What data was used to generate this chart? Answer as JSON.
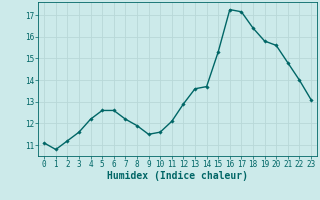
{
  "xlabel": "Humidex (Indice chaleur)",
  "ylabel": "",
  "x": [
    0,
    1,
    2,
    3,
    4,
    5,
    6,
    7,
    8,
    9,
    10,
    11,
    12,
    13,
    14,
    15,
    16,
    17,
    18,
    19,
    20,
    21,
    22,
    23
  ],
  "y": [
    11.1,
    10.8,
    11.2,
    11.6,
    12.2,
    12.6,
    12.6,
    12.2,
    11.9,
    11.5,
    11.6,
    12.1,
    12.9,
    13.6,
    13.7,
    15.3,
    17.25,
    17.15,
    16.4,
    15.8,
    15.6,
    14.8,
    14.0,
    13.1
  ],
  "line_color": "#006666",
  "marker": "D",
  "marker_size": 1.8,
  "bg_color": "#cceaea",
  "grid_color": "#b8d8d8",
  "tick_color": "#006666",
  "label_color": "#006666",
  "ylim": [
    10.5,
    17.6
  ],
  "xlim": [
    -0.5,
    23.5
  ],
  "yticks": [
    11,
    12,
    13,
    14,
    15,
    16,
    17
  ],
  "xticks": [
    0,
    1,
    2,
    3,
    4,
    5,
    6,
    7,
    8,
    9,
    10,
    11,
    12,
    13,
    14,
    15,
    16,
    17,
    18,
    19,
    20,
    21,
    22,
    23
  ],
  "linewidth": 1.0,
  "tick_fontsize": 5.5,
  "label_fontsize": 7.0
}
